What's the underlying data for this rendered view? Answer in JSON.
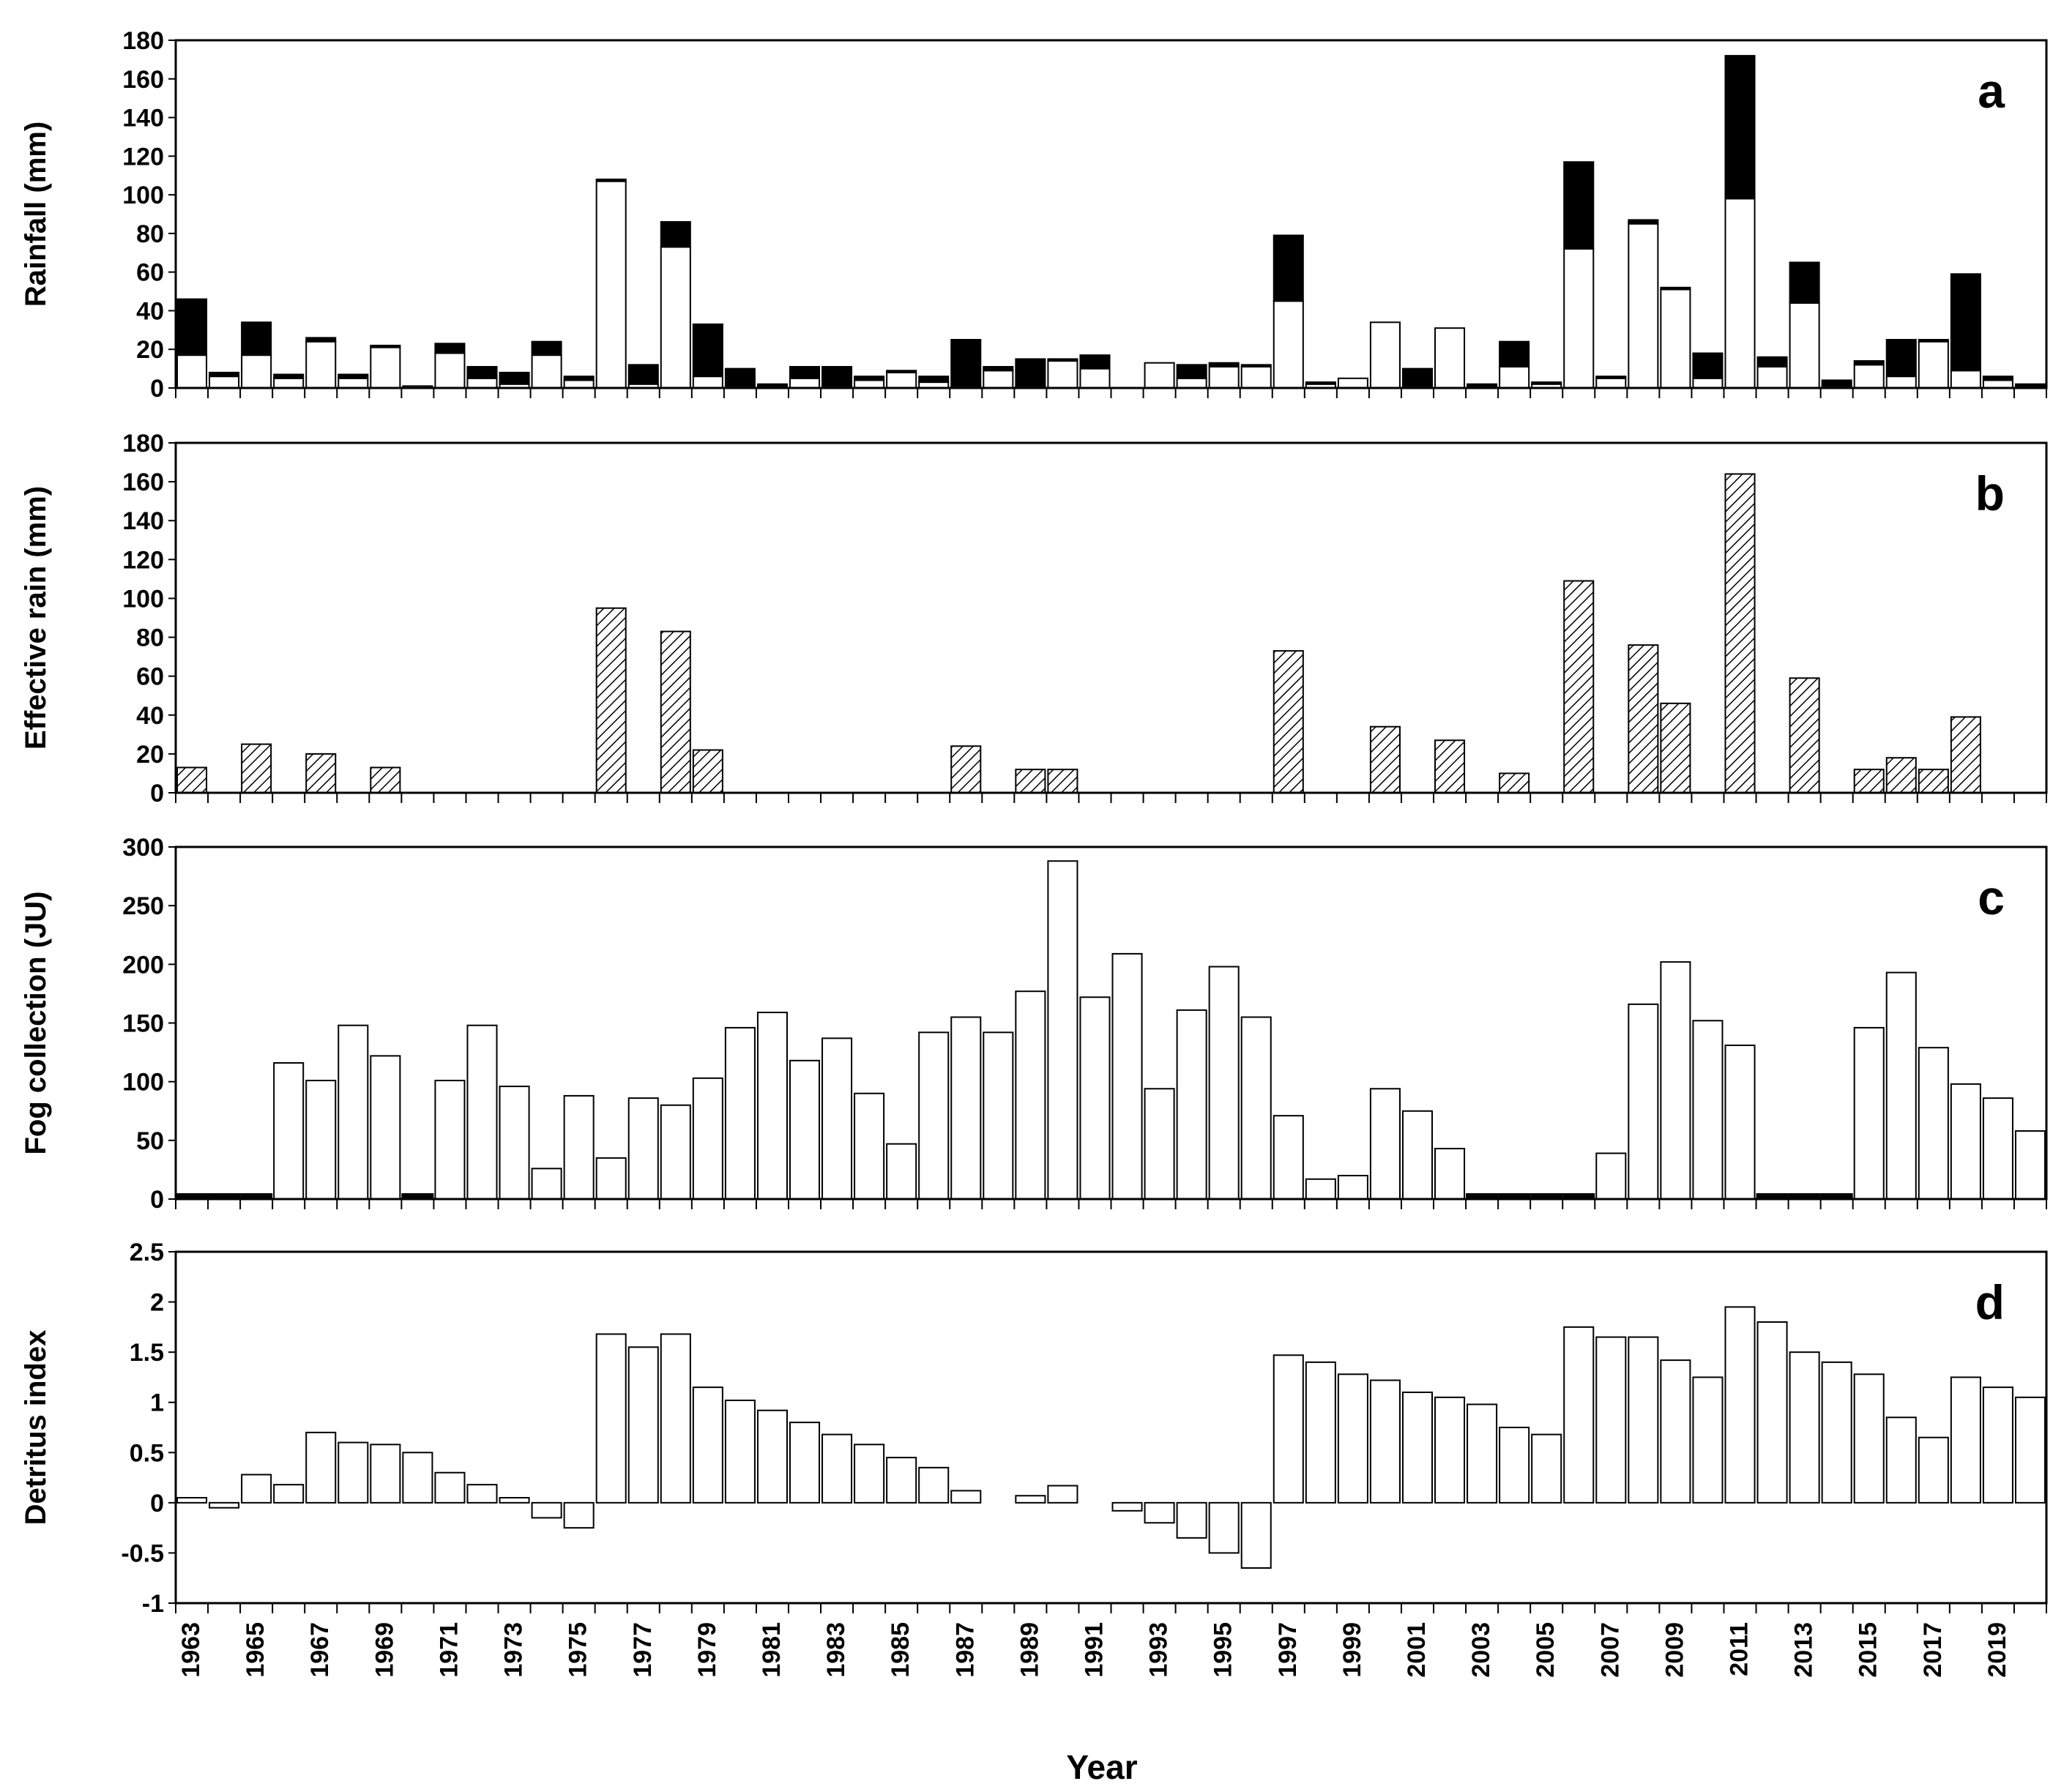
{
  "chart_data": [
    {
      "type": "bar",
      "stacked": true,
      "panel_label": "a",
      "ylabel": "Rainfall (mm)",
      "ylim": [
        0,
        180
      ],
      "yticks": [
        0,
        20,
        40,
        60,
        80,
        100,
        120,
        140,
        160,
        180
      ],
      "x": [
        1963,
        1964,
        1965,
        1966,
        1967,
        1968,
        1969,
        1970,
        1971,
        1972,
        1973,
        1974,
        1975,
        1976,
        1977,
        1978,
        1979,
        1980,
        1981,
        1982,
        1983,
        1984,
        1985,
        1986,
        1987,
        1988,
        1989,
        1990,
        1991,
        1992,
        1993,
        1994,
        1995,
        1996,
        1997,
        1998,
        1999,
        2000,
        2001,
        2002,
        2003,
        2004,
        2005,
        2006,
        2007,
        2008,
        2009,
        2010,
        2011,
        2012,
        2013,
        2014,
        2015,
        2016,
        2017,
        2018,
        2019,
        2020
      ],
      "series": [
        {
          "fill": "#ffffff",
          "values": [
            17,
            6,
            17,
            5,
            24,
            5,
            21,
            1,
            18,
            5,
            2,
            17,
            4,
            107,
            2,
            73,
            6,
            1,
            1,
            5,
            1,
            4,
            8,
            3,
            1,
            9,
            1,
            14,
            10,
            0,
            13,
            5,
            11,
            11,
            45,
            2,
            5,
            34,
            1,
            31,
            1,
            11,
            2,
            72,
            5,
            85,
            51,
            5,
            98,
            11,
            44,
            1,
            12,
            6,
            24,
            9,
            4,
            1
          ]
        },
        {
          "fill": "#000000",
          "values": [
            29,
            2,
            17,
            2,
            2,
            2,
            1,
            0,
            5,
            6,
            6,
            7,
            2,
            1,
            10,
            13,
            27,
            9,
            1,
            6,
            10,
            2,
            1,
            3,
            24,
            2,
            14,
            1,
            7,
            0,
            0,
            7,
            2,
            1,
            34,
            1,
            0,
            0,
            9,
            0,
            1,
            13,
            1,
            45,
            1,
            2,
            1,
            13,
            74,
            5,
            21,
            3,
            2,
            19,
            1,
            50,
            2,
            1
          ]
        }
      ]
    },
    {
      "type": "bar",
      "panel_label": "b",
      "ylabel": "Effective rain (mm)",
      "ylim": [
        0,
        180
      ],
      "yticks": [
        0,
        20,
        40,
        60,
        80,
        100,
        120,
        140,
        160,
        180
      ],
      "fill": "hatched",
      "x": [
        1963,
        1964,
        1965,
        1966,
        1967,
        1968,
        1969,
        1970,
        1971,
        1972,
        1973,
        1974,
        1975,
        1976,
        1977,
        1978,
        1979,
        1980,
        1981,
        1982,
        1983,
        1984,
        1985,
        1986,
        1987,
        1988,
        1989,
        1990,
        1991,
        1992,
        1993,
        1994,
        1995,
        1996,
        1997,
        1998,
        1999,
        2000,
        2001,
        2002,
        2003,
        2004,
        2005,
        2006,
        2007,
        2008,
        2009,
        2010,
        2011,
        2012,
        2013,
        2014,
        2015,
        2016,
        2017,
        2018,
        2019,
        2020
      ],
      "values": [
        13,
        0,
        25,
        0,
        20,
        0,
        13,
        0,
        0,
        0,
        0,
        0,
        0,
        95,
        0,
        83,
        22,
        0,
        0,
        0,
        0,
        0,
        0,
        0,
        24,
        0,
        12,
        12,
        0,
        0,
        0,
        0,
        0,
        0,
        73,
        0,
        0,
        34,
        0,
        27,
        0,
        10,
        0,
        109,
        0,
        76,
        46,
        0,
        164,
        0,
        59,
        0,
        12,
        18,
        12,
        39,
        0,
        0
      ]
    },
    {
      "type": "bar",
      "panel_label": "c",
      "ylabel": "Fog collection (JU)",
      "ylim": [
        0,
        300
      ],
      "yticks": [
        0,
        50,
        100,
        150,
        200,
        250,
        300
      ],
      "x": [
        1963,
        1964,
        1965,
        1966,
        1967,
        1968,
        1969,
        1970,
        1971,
        1972,
        1973,
        1974,
        1975,
        1976,
        1977,
        1978,
        1979,
        1980,
        1981,
        1982,
        1983,
        1984,
        1985,
        1986,
        1987,
        1988,
        1989,
        1990,
        1991,
        1992,
        1993,
        1994,
        1995,
        1996,
        1997,
        1998,
        1999,
        2000,
        2001,
        2002,
        2003,
        2004,
        2005,
        2006,
        2007,
        2008,
        2009,
        2010,
        2011,
        2012,
        2013,
        2014,
        2015,
        2016,
        2017,
        2018,
        2019,
        2020
      ],
      "values": [
        0,
        0,
        0,
        116,
        101,
        148,
        122,
        0,
        101,
        148,
        96,
        26,
        88,
        35,
        86,
        80,
        103,
        146,
        159,
        118,
        137,
        90,
        47,
        142,
        155,
        142,
        177,
        288,
        172,
        209,
        94,
        161,
        198,
        155,
        71,
        17,
        20,
        94,
        75,
        43,
        0,
        0,
        0,
        0,
        39,
        166,
        202,
        152,
        131,
        0,
        0,
        0,
        146,
        193,
        129,
        98,
        86,
        58
      ],
      "missing_years": [
        1963,
        1964,
        1965,
        1970,
        2003,
        2004,
        2005,
        2006,
        2012,
        2013,
        2014
      ]
    },
    {
      "type": "bar",
      "panel_label": "d",
      "ylabel": "Detritus index",
      "xlabel": "Year",
      "ylim": [
        -1,
        2.5
      ],
      "yticks": [
        -1,
        -0.5,
        0,
        0.5,
        1,
        1.5,
        2,
        2.5
      ],
      "ytick_labels": [
        "-1",
        "-0.5",
        "0",
        "0.5",
        "1",
        "1.5",
        "2",
        "2.5"
      ],
      "x": [
        1963,
        1964,
        1965,
        1966,
        1967,
        1968,
        1969,
        1970,
        1971,
        1972,
        1973,
        1974,
        1975,
        1976,
        1977,
        1978,
        1979,
        1980,
        1981,
        1982,
        1983,
        1984,
        1985,
        1986,
        1987,
        1988,
        1989,
        1990,
        1991,
        1992,
        1993,
        1994,
        1995,
        1996,
        1997,
        1998,
        1999,
        2000,
        2001,
        2002,
        2003,
        2004,
        2005,
        2006,
        2007,
        2008,
        2009,
        2010,
        2011,
        2012,
        2013,
        2014,
        2015,
        2016,
        2017,
        2018,
        2019,
        2020
      ],
      "values": [
        0.05,
        -0.05,
        0.28,
        0.18,
        0.7,
        0.6,
        0.58,
        0.5,
        0.3,
        0.18,
        0.05,
        -0.15,
        -0.25,
        1.68,
        1.55,
        1.68,
        1.15,
        1.02,
        0.92,
        0.8,
        0.68,
        0.58,
        0.45,
        0.35,
        0.12,
        0.0,
        0.07,
        0.17,
        0.0,
        -0.08,
        -0.2,
        -0.35,
        -0.5,
        -0.65,
        1.47,
        1.4,
        1.28,
        1.22,
        1.1,
        1.05,
        0.98,
        0.75,
        0.68,
        1.75,
        1.65,
        1.65,
        1.42,
        1.25,
        1.95,
        1.8,
        1.5,
        1.4,
        1.28,
        0.85,
        0.65,
        1.25,
        1.15,
        1.05
      ],
      "xtick_labels": [
        "1963",
        "1965",
        "1967",
        "1969",
        "1971",
        "1973",
        "1975",
        "1977",
        "1979",
        "1981",
        "1983",
        "1985",
        "1987",
        "1989",
        "1991",
        "1993",
        "1995",
        "1997",
        "1999",
        "2001",
        "2003",
        "2005",
        "2007",
        "2009",
        "2011",
        "2013",
        "2015",
        "2017",
        "2019"
      ]
    }
  ]
}
